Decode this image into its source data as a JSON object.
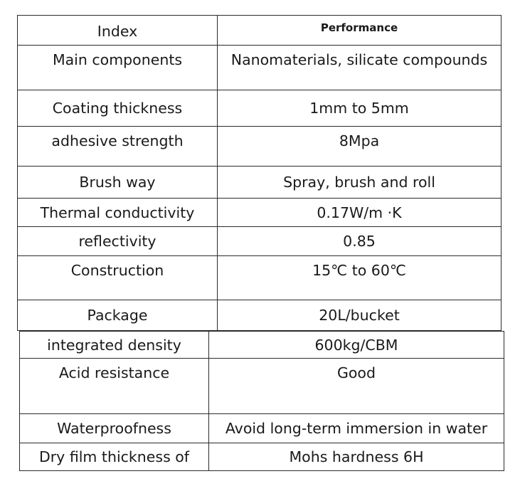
{
  "header": {
    "index": "Index",
    "performance": "Performance"
  },
  "rows_a": [
    {
      "index": "Main components",
      "value": "Nanomaterials, silicate compounds"
    },
    {
      "index": "Coating thickness",
      "value": "1mm to 5mm"
    },
    {
      "index": "adhesive strength",
      "value": "8Mpa"
    },
    {
      "index": "Brush way",
      "value": "Spray, brush and roll"
    },
    {
      "index": "Thermal conductivity",
      "value": "0.17W/m ·K"
    },
    {
      "index": "reflectivity",
      "value": "0.85"
    },
    {
      "index": "Construction",
      "value": "15℃ to 60℃"
    },
    {
      "index": "Package",
      "value": "20L/bucket"
    }
  ],
  "rows_b": [
    {
      "index": "integrated density",
      "value": "600kg/CBM"
    },
    {
      "index": "Acid resistance",
      "value": "Good"
    },
    {
      "index": "Waterproofness",
      "value": "Avoid long-term immersion in water"
    },
    {
      "index": "Dry film thickness of",
      "value": "Mohs hardness 6H"
    }
  ]
}
